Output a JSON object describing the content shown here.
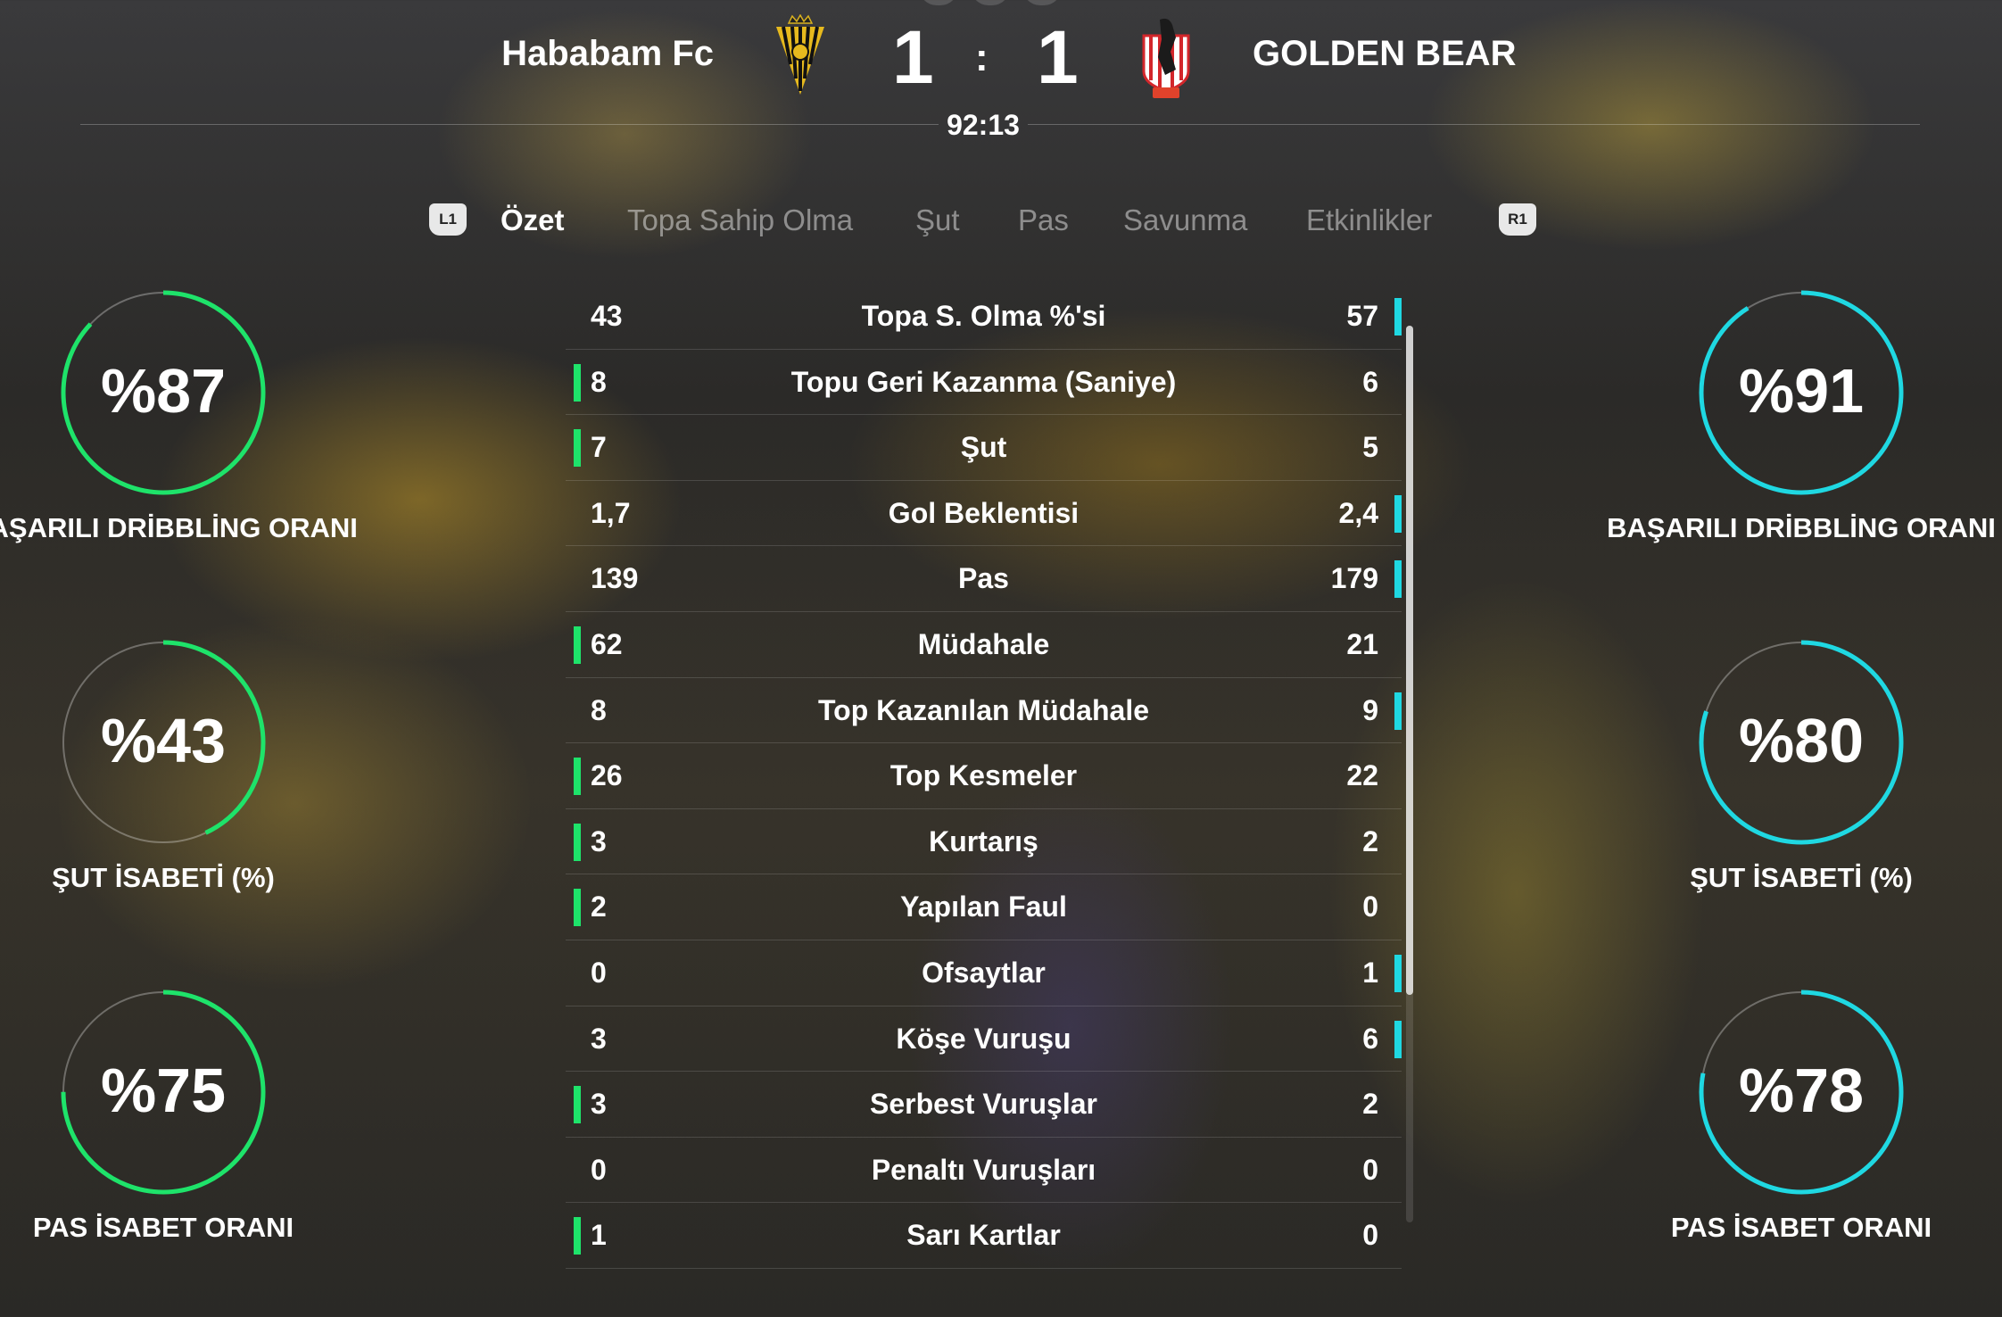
{
  "match": {
    "home_team": "Hababam Fc",
    "away_team": "GOLDEN BEAR",
    "home_score": "1",
    "separator": ":",
    "away_score": "1",
    "time": "92:13"
  },
  "tabs": {
    "left_button": "L1",
    "right_button": "R1",
    "items": [
      "Özet",
      "Topa Sahip Olma",
      "Şut",
      "Pas",
      "Savunma",
      "Etkinlikler"
    ],
    "active": "Özet"
  },
  "colors": {
    "home": "#1ee36a",
    "away": "#1fd8e2"
  },
  "stats": [
    {
      "label": "Topa S. Olma %'si",
      "home": "43",
      "away": "57",
      "leader": "away"
    },
    {
      "label": "Topu Geri Kazanma (Saniye)",
      "home": "8",
      "away": "6",
      "leader": "home"
    },
    {
      "label": "Şut",
      "home": "7",
      "away": "5",
      "leader": "home"
    },
    {
      "label": "Gol Beklentisi",
      "home": "1,7",
      "away": "2,4",
      "leader": "away"
    },
    {
      "label": "Pas",
      "home": "139",
      "away": "179",
      "leader": "away"
    },
    {
      "label": "Müdahale",
      "home": "62",
      "away": "21",
      "leader": "home"
    },
    {
      "label": "Top Kazanılan Müdahale",
      "home": "8",
      "away": "9",
      "leader": "away"
    },
    {
      "label": "Top Kesmeler",
      "home": "26",
      "away": "22",
      "leader": "home"
    },
    {
      "label": "Kurtarış",
      "home": "3",
      "away": "2",
      "leader": "home"
    },
    {
      "label": "Yapılan Faul",
      "home": "2",
      "away": "0",
      "leader": "home"
    },
    {
      "label": "Ofsaytlar",
      "home": "0",
      "away": "1",
      "leader": "away"
    },
    {
      "label": "Köşe Vuruşu",
      "home": "3",
      "away": "6",
      "leader": "away"
    },
    {
      "label": "Serbest Vuruşlar",
      "home": "3",
      "away": "2",
      "leader": "home"
    },
    {
      "label": "Penaltı Vuruşları",
      "home": "0",
      "away": "0",
      "leader": "none"
    },
    {
      "label": "Sarı Kartlar",
      "home": "1",
      "away": "0",
      "leader": "home"
    }
  ],
  "home_rings": [
    {
      "value": "%87",
      "percent": 87,
      "label": "BAŞARILI DRİBBLİNG ORANI"
    },
    {
      "value": "%43",
      "percent": 43,
      "label": "ŞUT İSABETİ (%)"
    },
    {
      "value": "%75",
      "percent": 75,
      "label": "PAS İSABET ORANI"
    }
  ],
  "away_rings": [
    {
      "value": "%91",
      "percent": 91,
      "label": "BAŞARILI DRİBBLİNG ORANI"
    },
    {
      "value": "%80",
      "percent": 80,
      "label": "ŞUT İSABETİ (%)"
    },
    {
      "value": "%78",
      "percent": 78,
      "label": "PAS İSABET ORANI"
    }
  ]
}
